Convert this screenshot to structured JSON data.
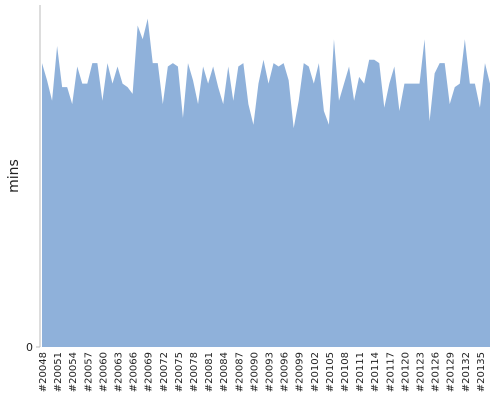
{
  "chart_data": {
    "type": "area",
    "y_label": "mins",
    "color": "#8fb1da",
    "categories": [
      "#20048",
      null,
      null,
      "#20051",
      null,
      null,
      "#20054",
      null,
      null,
      "#20057",
      null,
      null,
      "#20060",
      null,
      null,
      "#20063",
      null,
      null,
      "#20066",
      null,
      null,
      "#20069",
      null,
      null,
      "#20072",
      null,
      null,
      "#20075",
      null,
      null,
      "#20078",
      null,
      null,
      "#20081",
      null,
      null,
      "#20084",
      null,
      null,
      "#20087",
      null,
      null,
      "#20090",
      null,
      null,
      "#20093",
      null,
      null,
      "#20096",
      null,
      null,
      "#20099",
      null,
      null,
      "#20102",
      null,
      null,
      "#20105",
      null,
      null,
      "#20108",
      null,
      null,
      "#20111",
      null,
      null,
      "#20114",
      null,
      null,
      "#20117",
      null,
      null,
      "#20120",
      null,
      null,
      "#20123",
      null,
      null,
      "#20126",
      null,
      null,
      "#20129",
      null,
      null,
      "#20132",
      null,
      null,
      "#20135",
      null,
      null
    ],
    "values": [
      83,
      78,
      72,
      88,
      76,
      76,
      71,
      82,
      77,
      77,
      83,
      83,
      72,
      83,
      77,
      82,
      77,
      76,
      74,
      94,
      90,
      96,
      83,
      83,
      71,
      82,
      83,
      82,
      67,
      83,
      78,
      71,
      82,
      77,
      82,
      76,
      71,
      82,
      72,
      82,
      83,
      71,
      65,
      77,
      84,
      77,
      83,
      82,
      83,
      78,
      64,
      72,
      83,
      82,
      77,
      83,
      69,
      65,
      90,
      72,
      77,
      82,
      72,
      79,
      77,
      84,
      84,
      83,
      70,
      77,
      82,
      69,
      77,
      77,
      77,
      77,
      90,
      66,
      80,
      83,
      83,
      71,
      76,
      77,
      90,
      77,
      77,
      70,
      83,
      77
    ],
    "ylim": [
      0,
      100
    ],
    "yticks": [
      0
    ]
  }
}
